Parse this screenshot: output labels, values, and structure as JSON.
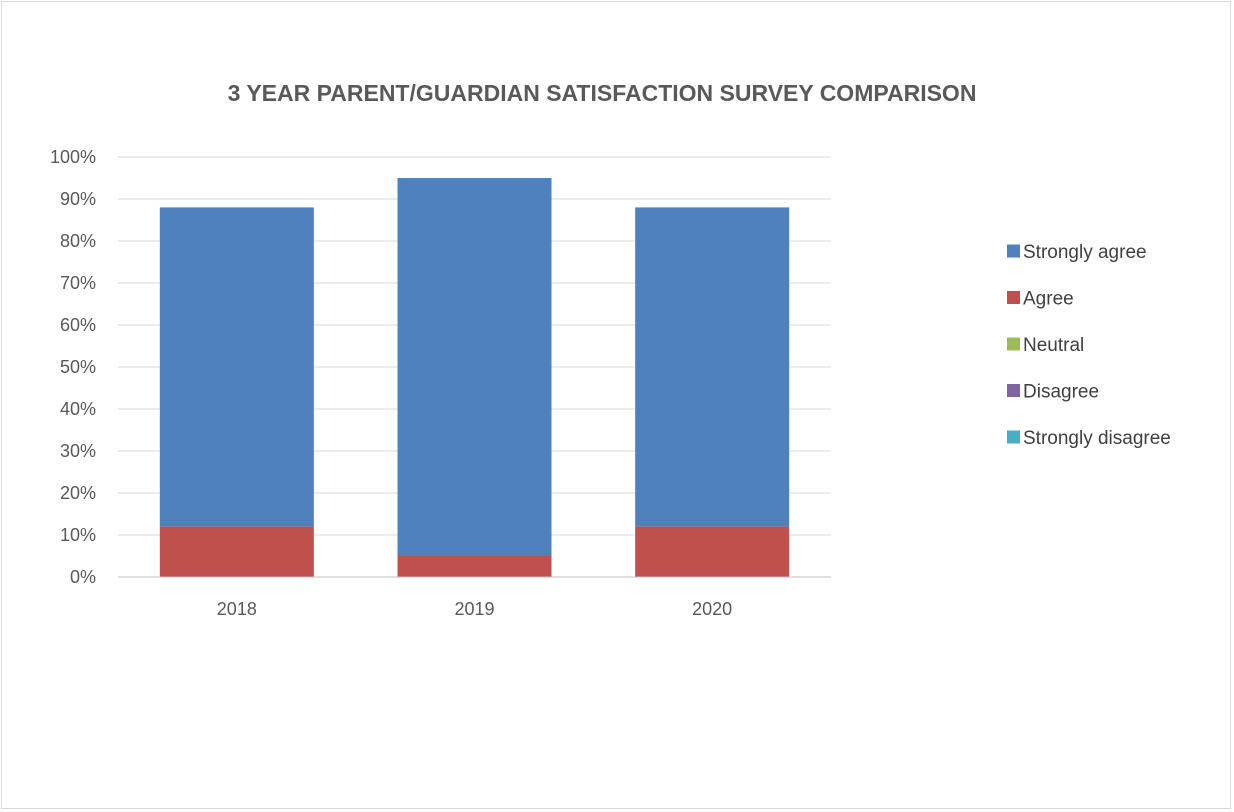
{
  "chart_data": {
    "type": "bar",
    "stacked": true,
    "title": "3 YEAR PARENT/GUARDIAN SATISFACTION SURVEY COMPARISON",
    "xlabel": "",
    "ylabel": "",
    "categories": [
      "2018",
      "2019",
      "2020"
    ],
    "ylim": [
      0,
      100
    ],
    "y_ticks": [
      0,
      10,
      20,
      30,
      40,
      50,
      60,
      70,
      80,
      90,
      100
    ],
    "y_tick_labels": [
      "0%",
      "10%",
      "20%",
      "30%",
      "40%",
      "50%",
      "60%",
      "70%",
      "80%",
      "90%",
      "100%"
    ],
    "grid": true,
    "legend_position": "right",
    "series": [
      {
        "name": "Strongly agree",
        "color": "#4F81BD",
        "values": [
          76,
          90,
          76
        ]
      },
      {
        "name": "Agree",
        "color": "#C0504D",
        "values": [
          12,
          5,
          12
        ]
      },
      {
        "name": "Neutral",
        "color": "#9BBB59",
        "values": [
          0,
          0,
          0
        ]
      },
      {
        "name": "Disagree",
        "color": "#8064A2",
        "values": [
          0,
          0,
          0
        ]
      },
      {
        "name": "Strongly disagree",
        "color": "#4BACC6",
        "values": [
          0,
          0,
          0
        ]
      }
    ]
  }
}
